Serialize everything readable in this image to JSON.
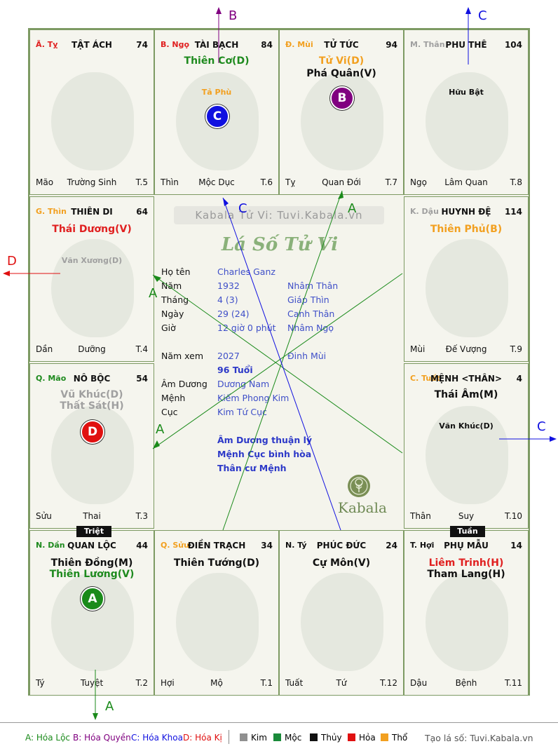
{
  "cells": [
    {
      "id": "ty",
      "can": "Ã. Tỵ",
      "can_color": "#e02020",
      "name": "TẬT ÁCH",
      "num": "74",
      "bl": "Mão",
      "bc": "Trường Sinh",
      "br": "T.5",
      "stars": []
    },
    {
      "id": "ngo",
      "can": "B. Ngọ",
      "can_color": "#e02020",
      "name": "TÀI BẠCH",
      "num": "84",
      "bl": "Thìn",
      "bc": "Mộc Dục",
      "br": "T.6",
      "stars": [
        {
          "text": "Thiên Cơ(D)",
          "color": "#1e8a1e",
          "size": "big",
          "top": 36
        },
        {
          "text": "Tả Phù",
          "color": "#f2a020",
          "size": "small",
          "top": 82
        }
      ],
      "badge": {
        "letter": "C",
        "color": "#1010e0",
        "top": 106
      }
    },
    {
      "id": "mui",
      "can": "Đ. Mùi",
      "can_color": "#f2a020",
      "name": "TỬ TỨC",
      "num": "94",
      "bl": "Tỵ",
      "bc": "Quan Đới",
      "br": "T.7",
      "stars": [
        {
          "text": "Tử Vi(D)",
          "color": "#f2a020",
          "size": "big",
          "top": 36
        },
        {
          "text": "Phá Quân(V)",
          "color": "#111111",
          "size": "big",
          "top": 54
        }
      ],
      "badge": {
        "letter": "B",
        "color": "#800080",
        "top": 80
      }
    },
    {
      "id": "than",
      "can": "M. Thân",
      "can_color": "#a0a0a0",
      "name": "PHU THÊ",
      "num": "104",
      "bl": "Ngọ",
      "bc": "Lâm Quan",
      "br": "T.8",
      "stars": [
        {
          "text": "Hữu Bật",
          "color": "#111111",
          "size": "small",
          "top": 82
        }
      ]
    },
    {
      "id": "thin",
      "can": "G. Thìn",
      "can_color": "#f2a020",
      "name": "THIÊN DI",
      "num": "64",
      "bl": "Dần",
      "bc": "Dưỡng",
      "br": "T.4",
      "stars": [
        {
          "text": "Thái Dương(V)",
          "color": "#e02020",
          "size": "big",
          "top": 38
        },
        {
          "text": "Văn Xương(D)",
          "color": "#a0a0a0",
          "size": "small",
          "top": 84
        }
      ]
    },
    {
      "id": "dau",
      "can": "K. Dậu",
      "can_color": "#a0a0a0",
      "name": "HUYNH ĐỆ",
      "num": "114",
      "bl": "Mùi",
      "bc": "Đế Vượng",
      "br": "T.9",
      "stars": [
        {
          "text": "Thiên Phủ(B)",
          "color": "#f2a020",
          "size": "big",
          "top": 38
        }
      ]
    },
    {
      "id": "mao",
      "can": "Q. Mão",
      "can_color": "#1e8a1e",
      "name": "NÔ BỘC",
      "num": "54",
      "bl": "Sửu",
      "bc": "Thai",
      "br": "T.3",
      "stars": [
        {
          "text": "Vũ Khúc(D)",
          "color": "#a0a0a0",
          "size": "big",
          "top": 36
        },
        {
          "text": "Thất Sát(H)",
          "color": "#a0a0a0",
          "size": "big",
          "top": 52
        }
      ],
      "badge": {
        "letter": "D",
        "color": "#e01010",
        "top": 80
      }
    },
    {
      "id": "tuat",
      "can": "C. Tuất",
      "can_color": "#f2a020",
      "name": "MỆNH <THÂN>",
      "num": "4",
      "bl": "Thân",
      "bc": "Suy",
      "br": "T.10",
      "stars": [
        {
          "text": "Thái Âm(M)",
          "color": "#111111",
          "size": "big",
          "top": 36
        },
        {
          "text": "Văn Khúc(D)",
          "color": "#111111",
          "size": "small",
          "top": 82
        }
      ]
    },
    {
      "id": "dan",
      "can": "N. Dần",
      "can_color": "#1e8a1e",
      "name": "QUAN LỘC",
      "num": "44",
      "bl": "Tý",
      "bc": "Tuyệt",
      "br": "T.2",
      "stars": [
        {
          "text": "Thiên Đồng(M)",
          "color": "#111111",
          "size": "big",
          "top": 38
        },
        {
          "text": "Thiên Lương(V)",
          "color": "#1e8a1e",
          "size": "big",
          "top": 54
        }
      ],
      "badge": {
        "letter": "A",
        "color": "#1a8a1a",
        "top": 80
      }
    },
    {
      "id": "suu",
      "can": "Q. Sửu",
      "can_color": "#f2a020",
      "name": "ĐIỀN TRẠCH",
      "num": "34",
      "bl": "Hợi",
      "bc": "Mộ",
      "br": "T.1",
      "stars": [
        {
          "text": "Thiên Tướng(D)",
          "color": "#111111",
          "size": "big",
          "top": 38
        }
      ]
    },
    {
      "id": "tyi",
      "can": "N. Tý",
      "can_color": "#111111",
      "name": "PHÚC ĐỨC",
      "num": "24",
      "bl": "Tuất",
      "bc": "Tứ",
      "br": "T.12",
      "stars": [
        {
          "text": "Cự Môn(V)",
          "color": "#111111",
          "size": "big",
          "top": 38
        }
      ]
    },
    {
      "id": "hoi",
      "can": "T. Hợi",
      "can_color": "#111111",
      "name": "PHỤ MẪU",
      "num": "14",
      "bl": "Dậu",
      "bc": "Bệnh",
      "br": "T.11",
      "stars": [
        {
          "text": "Liêm Trinh(H)",
          "color": "#e02020",
          "size": "big",
          "top": 38
        },
        {
          "text": "Tham Lang(H)",
          "color": "#111111",
          "size": "big",
          "top": 54
        }
      ]
    }
  ],
  "tags": {
    "triet": "Triệt",
    "tuan": "Tuần"
  },
  "center": {
    "watermark": "Kabala Tử Vi: Tuvi.Kabala.vn",
    "script_title": "Lá Số Tử Vi",
    "labels": {
      "ho_ten": "Họ tên",
      "nam": "Năm",
      "thang": "Tháng",
      "ngay": "Ngày",
      "gio": "Giờ",
      "nam_xem": "Năm xem",
      "am_duong": "Âm Dương",
      "menh": "Mệnh",
      "cuc": "Cục"
    },
    "values": {
      "ho_ten": "Charles Ganz",
      "nam": "1932",
      "nam_cc": "Nhâm Thân",
      "thang": "4  (3)",
      "thang_cc": "Giáp Thìn",
      "ngay": "29  (24)",
      "ngay_cc": "Canh Thân",
      "gio": "12 giờ 0 phút",
      "gio_cc": "Nhâm Ngọ",
      "nam_xem": "2027",
      "nam_xem_cc": "Đinh Mùi",
      "tuoi": "96 Tuổi",
      "am_duong": "Dương Nam",
      "menh": "Kiếm Phong Kim",
      "cuc": "Kim Tứ Cục"
    },
    "notes": [
      "Âm Dương thuận lý",
      "Mệnh Cục bình hòa",
      "Thân cư Mệnh"
    ],
    "brand": "Kabala"
  },
  "directions": {
    "A": "A",
    "B": "B",
    "C": "C",
    "D": "D"
  },
  "legend": {
    "a": "A: Hóa Lộc",
    "b": "B: Hóa Quyền",
    "c": "C: Hóa Khoa",
    "d": "D: Hóa Kị",
    "kim": "Kim",
    "moc": "Mộc",
    "thuy": "Thủy",
    "hoa": "Hỏa",
    "tho": "Thổ",
    "site": "Tạo lá số: Tuvi.Kabala.vn",
    "colors": {
      "kim": "#909090",
      "moc": "#1a8a3a",
      "thuy": "#111111",
      "hoa": "#e01010",
      "tho": "#f2a020"
    }
  }
}
